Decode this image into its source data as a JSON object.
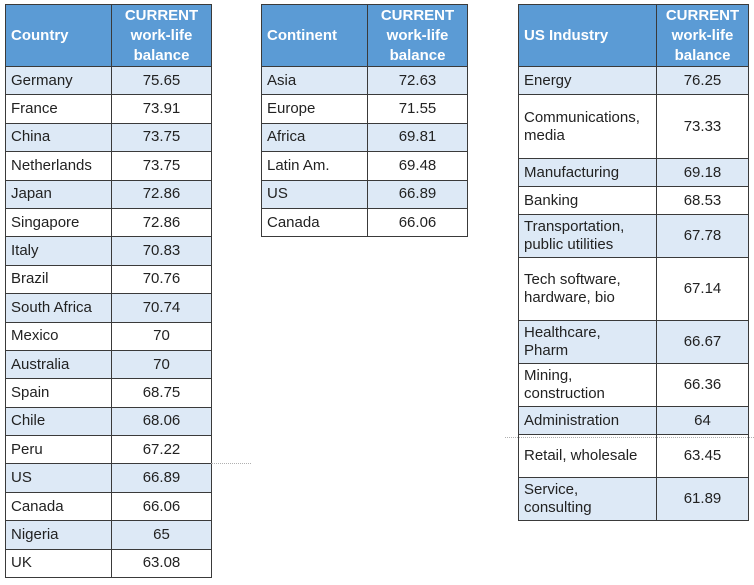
{
  "header_value": "CURRENT\nwork-life\nbalance",
  "country_table": {
    "header_label": "Country",
    "rows": [
      {
        "name": "Germany",
        "value": "75.65"
      },
      {
        "name": "France",
        "value": "73.91"
      },
      {
        "name": "China",
        "value": "73.75"
      },
      {
        "name": "Netherlands",
        "value": "73.75"
      },
      {
        "name": "Japan",
        "value": "72.86"
      },
      {
        "name": "Singapore",
        "value": "72.86"
      },
      {
        "name": "Italy",
        "value": "70.83"
      },
      {
        "name": "Brazil",
        "value": "70.76"
      },
      {
        "name": "South Africa",
        "value": "70.74"
      },
      {
        "name": "Mexico",
        "value": "70"
      },
      {
        "name": "Australia",
        "value": "70"
      },
      {
        "name": "Spain",
        "value": "68.75"
      },
      {
        "name": "Chile",
        "value": "68.06"
      },
      {
        "name": "Peru",
        "value": "67.22"
      },
      {
        "name": "US",
        "value": "66.89"
      },
      {
        "name": "Canada",
        "value": "66.06"
      },
      {
        "name": "Nigeria",
        "value": "65"
      },
      {
        "name": "UK",
        "value": "63.08"
      }
    ]
  },
  "continent_table": {
    "header_label": "Continent",
    "rows": [
      {
        "name": "Asia",
        "value": "72.63"
      },
      {
        "name": "Europe",
        "value": "71.55"
      },
      {
        "name": "Africa",
        "value": "69.81"
      },
      {
        "name": "Latin Am.",
        "value": "69.48"
      },
      {
        "name": "US",
        "value": "66.89"
      },
      {
        "name": "Canada",
        "value": "66.06"
      }
    ]
  },
  "industry_table": {
    "header_label": "US Industry",
    "rows": [
      {
        "name": "Energy",
        "value": "76.25"
      },
      {
        "name": "Communications,\nmedia",
        "value": "73.33"
      },
      {
        "name": "Manufacturing",
        "value": "69.18"
      },
      {
        "name": "Banking",
        "value": "68.53"
      },
      {
        "name": "Transportation,\npublic utilities",
        "value": "67.78"
      },
      {
        "name": "Tech software,\nhardware, bio",
        "value": "67.14"
      },
      {
        "name": "Healthcare,\nPharm",
        "value": "66.67"
      },
      {
        "name": "Mining,\nconstruction",
        "value": "66.36"
      },
      {
        "name": "Administration",
        "value": "64"
      },
      {
        "name": "Retail, wholesale",
        "value": "63.45"
      },
      {
        "name": "Service,\nconsulting",
        "value": "61.89"
      }
    ]
  },
  "colors": {
    "header_bg": "#5b9bd5",
    "stripe_bg": "#dde9f6",
    "border": "#3a3a3a"
  }
}
